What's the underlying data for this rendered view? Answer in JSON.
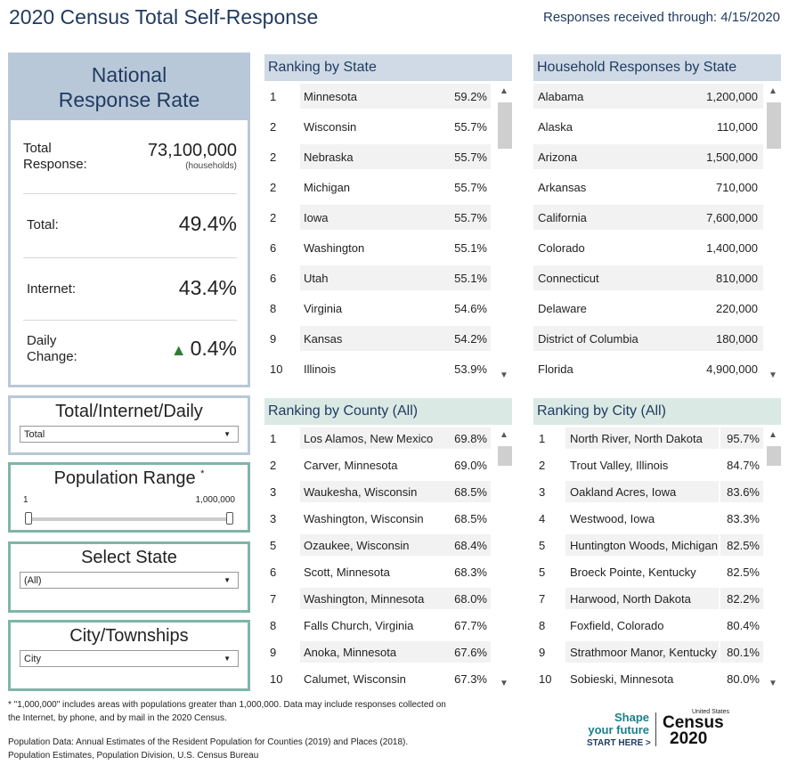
{
  "header": {
    "title": "2020 Census Total Self-Response",
    "as_of": "Responses received through: 4/15/2020"
  },
  "national": {
    "title_line1": "National",
    "title_line2": "Response Rate",
    "total_response_label_1": "Total",
    "total_response_label_2": "Response:",
    "total_response_value": "73,100,000",
    "total_response_unit": "(households)",
    "total_label": "Total:",
    "total_value": "49.4%",
    "internet_label": "Internet:",
    "internet_value": "43.4%",
    "daily_label_1": "Daily",
    "daily_label_2": "Change:",
    "daily_value": "0.4%",
    "daily_arrow": "▲"
  },
  "filters": {
    "measure": {
      "title": "Total/Internet/Daily",
      "selected": "Total"
    },
    "population": {
      "title": "Population Range",
      "star": "*",
      "min": "1",
      "max": "1,000,000"
    },
    "state": {
      "title": "Select State",
      "selected": "(All)"
    },
    "city": {
      "title": "City/Townships",
      "selected": "City"
    }
  },
  "ranking_state": {
    "title": "Ranking by State",
    "rows": [
      {
        "rank": "1",
        "name": "Minnesota",
        "value": "59.2%"
      },
      {
        "rank": "2",
        "name": "Wisconsin",
        "value": "55.7%"
      },
      {
        "rank": "2",
        "name": "Nebraska",
        "value": "55.7%"
      },
      {
        "rank": "2",
        "name": "Michigan",
        "value": "55.7%"
      },
      {
        "rank": "2",
        "name": "Iowa",
        "value": "55.7%"
      },
      {
        "rank": "6",
        "name": "Washington",
        "value": "55.1%"
      },
      {
        "rank": "6",
        "name": "Utah",
        "value": "55.1%"
      },
      {
        "rank": "8",
        "name": "Virginia",
        "value": "54.6%"
      },
      {
        "rank": "9",
        "name": "Kansas",
        "value": "54.2%"
      },
      {
        "rank": "10",
        "name": "Illinois",
        "value": "53.9%"
      }
    ]
  },
  "household_state": {
    "title": "Household Responses by State",
    "rows": [
      {
        "name": "Alabama",
        "value": "1,200,000"
      },
      {
        "name": "Alaska",
        "value": "110,000"
      },
      {
        "name": "Arizona",
        "value": "1,500,000"
      },
      {
        "name": "Arkansas",
        "value": "710,000"
      },
      {
        "name": "California",
        "value": "7,600,000"
      },
      {
        "name": "Colorado",
        "value": "1,400,000"
      },
      {
        "name": "Connecticut",
        "value": "810,000"
      },
      {
        "name": "Delaware",
        "value": "220,000"
      },
      {
        "name": "District of Columbia",
        "value": "180,000"
      },
      {
        "name": "Florida",
        "value": "4,900,000"
      }
    ]
  },
  "ranking_county": {
    "title": "Ranking by County (All)",
    "rows": [
      {
        "rank": "1",
        "name": "Los Alamos, New Mexico",
        "value": "69.8%"
      },
      {
        "rank": "2",
        "name": "Carver, Minnesota",
        "value": "69.0%"
      },
      {
        "rank": "3",
        "name": "Waukesha, Wisconsin",
        "value": "68.5%"
      },
      {
        "rank": "3",
        "name": "Washington, Wisconsin",
        "value": "68.5%"
      },
      {
        "rank": "5",
        "name": "Ozaukee, Wisconsin",
        "value": "68.4%"
      },
      {
        "rank": "6",
        "name": "Scott, Minnesota",
        "value": "68.3%"
      },
      {
        "rank": "7",
        "name": "Washington, Minnesota",
        "value": "68.0%"
      },
      {
        "rank": "8",
        "name": "Falls Church, Virginia",
        "value": "67.7%"
      },
      {
        "rank": "9",
        "name": "Anoka, Minnesota",
        "value": "67.6%"
      },
      {
        "rank": "10",
        "name": "Calumet, Wisconsin",
        "value": "67.3%"
      }
    ]
  },
  "ranking_city": {
    "title": "Ranking by City (All)",
    "rows": [
      {
        "rank": "1",
        "name": "North River, North Dakota",
        "value": "95.7%"
      },
      {
        "rank": "2",
        "name": "Trout Valley, Illinois",
        "value": "84.7%"
      },
      {
        "rank": "3",
        "name": "Oakland Acres, Iowa",
        "value": "83.6%"
      },
      {
        "rank": "4",
        "name": "Westwood, Iowa",
        "value": "83.3%"
      },
      {
        "rank": "5",
        "name": "Huntington Woods, Michigan",
        "value": "82.5%"
      },
      {
        "rank": "5",
        "name": "Broeck Pointe, Kentucky",
        "value": "82.5%"
      },
      {
        "rank": "7",
        "name": "Harwood, North Dakota",
        "value": "82.2%"
      },
      {
        "rank": "8",
        "name": "Foxfield, Colorado",
        "value": "80.4%"
      },
      {
        "rank": "9",
        "name": "Strathmoor Manor, Kentucky",
        "value": "80.1%"
      },
      {
        "rank": "10",
        "name": "Sobieski, Minnesota",
        "value": "80.0%"
      }
    ]
  },
  "footnotes": {
    "note1": "* \"1,000,000\" includes areas with populations greater than 1,000,000.  Data may include responses collected on",
    "note2": "the Internet, by phone, and by mail in the 2020 Census.",
    "source1": "Population Data: Annual Estimates of the Resident Population for Counties (2019) and Places (2018).",
    "source2": "Population Estimates, Population Division, U.S. Census Bureau"
  },
  "logo": {
    "shape_line1": "Shape",
    "shape_line2": "your future",
    "start": "START HERE >",
    "us": "United States",
    "word": "Census",
    "year": "2020"
  },
  "colors": {
    "title": "#1f3a5f",
    "header_blue": "#b9c8d8",
    "header_green": "#dbe9e4",
    "arrow_green": "#2e7d32"
  }
}
